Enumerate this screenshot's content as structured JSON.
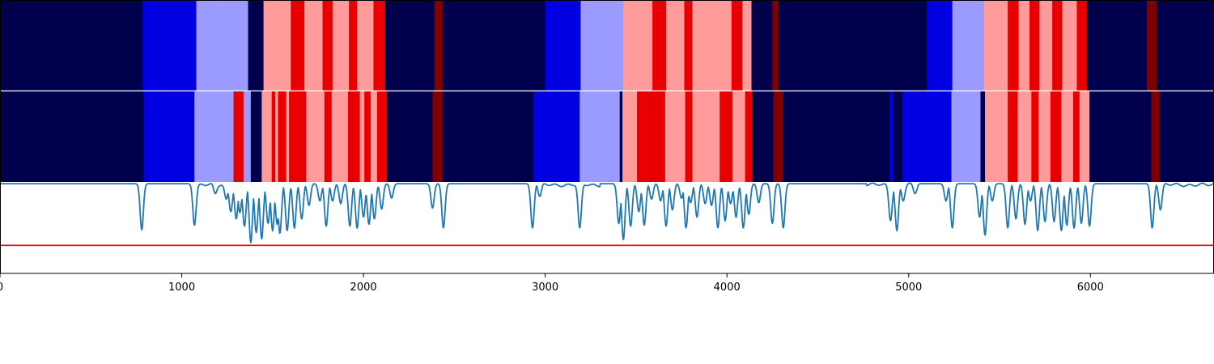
{
  "chart_data": {
    "type": "heatmap",
    "title": "",
    "xlabel": "",
    "ylabel": "",
    "xlim": [
      0,
      6680
    ],
    "xticks": [
      {
        "value": 0,
        "label": "0"
      },
      {
        "value": 1000,
        "label": "1000"
      },
      {
        "value": 2000,
        "label": "2000"
      },
      {
        "value": 3000,
        "label": "3000"
      },
      {
        "value": 4000,
        "label": "4000"
      },
      {
        "value": 5000,
        "label": "5000"
      },
      {
        "value": 6000,
        "label": "6000"
      }
    ],
    "state_colors": {
      "0": "#00004c",
      "1": "#0000e0",
      "2": "#9b9bff",
      "3": "#ff9b9b",
      "4": "#e80000",
      "5": "#7f0000"
    },
    "rows": [
      {
        "segments": [
          [
            0,
            785,
            0
          ],
          [
            785,
            1080,
            1
          ],
          [
            1080,
            1365,
            2
          ],
          [
            1365,
            1450,
            0
          ],
          [
            1450,
            1600,
            3
          ],
          [
            1600,
            1675,
            4
          ],
          [
            1675,
            1775,
            3
          ],
          [
            1775,
            1830,
            4
          ],
          [
            1830,
            1920,
            3
          ],
          [
            1920,
            1965,
            4
          ],
          [
            1965,
            2055,
            3
          ],
          [
            2055,
            2120,
            4
          ],
          [
            2120,
            2390,
            0
          ],
          [
            2390,
            2435,
            5
          ],
          [
            2435,
            3000,
            0
          ],
          [
            3000,
            3195,
            1
          ],
          [
            3195,
            3430,
            2
          ],
          [
            3430,
            3590,
            3
          ],
          [
            3590,
            3665,
            4
          ],
          [
            3665,
            3765,
            3
          ],
          [
            3765,
            3810,
            4
          ],
          [
            3810,
            4025,
            3
          ],
          [
            4025,
            4085,
            4
          ],
          [
            4085,
            4135,
            3
          ],
          [
            4135,
            4250,
            0
          ],
          [
            4250,
            4285,
            5
          ],
          [
            4285,
            5100,
            0
          ],
          [
            5100,
            5240,
            1
          ],
          [
            5240,
            5415,
            2
          ],
          [
            5415,
            5545,
            3
          ],
          [
            5545,
            5605,
            4
          ],
          [
            5605,
            5665,
            3
          ],
          [
            5665,
            5720,
            4
          ],
          [
            5720,
            5790,
            3
          ],
          [
            5790,
            5845,
            4
          ],
          [
            5845,
            5925,
            3
          ],
          [
            5925,
            5980,
            4
          ],
          [
            5980,
            6310,
            0
          ],
          [
            6310,
            6365,
            5
          ],
          [
            6365,
            6680,
            0
          ]
        ]
      },
      {
        "segments": [
          [
            0,
            790,
            0
          ],
          [
            790,
            1070,
            1
          ],
          [
            1070,
            1285,
            2
          ],
          [
            1285,
            1340,
            4
          ],
          [
            1340,
            1380,
            2
          ],
          [
            1380,
            1440,
            0
          ],
          [
            1440,
            1495,
            3
          ],
          [
            1495,
            1515,
            4
          ],
          [
            1515,
            1530,
            3
          ],
          [
            1530,
            1575,
            4
          ],
          [
            1575,
            1590,
            3
          ],
          [
            1590,
            1685,
            4
          ],
          [
            1685,
            1785,
            3
          ],
          [
            1785,
            1825,
            4
          ],
          [
            1825,
            1915,
            3
          ],
          [
            1915,
            1980,
            4
          ],
          [
            1980,
            2005,
            3
          ],
          [
            2005,
            2040,
            4
          ],
          [
            2040,
            2075,
            3
          ],
          [
            2075,
            2130,
            4
          ],
          [
            2130,
            2380,
            0
          ],
          [
            2380,
            2435,
            5
          ],
          [
            2435,
            2935,
            0
          ],
          [
            2935,
            3190,
            1
          ],
          [
            3190,
            3410,
            2
          ],
          [
            3410,
            3425,
            0
          ],
          [
            3425,
            3505,
            3
          ],
          [
            3505,
            3660,
            4
          ],
          [
            3660,
            3770,
            3
          ],
          [
            3770,
            3810,
            4
          ],
          [
            3810,
            3960,
            3
          ],
          [
            3960,
            4030,
            4
          ],
          [
            4030,
            4100,
            3
          ],
          [
            4100,
            4140,
            4
          ],
          [
            4140,
            4255,
            0
          ],
          [
            4255,
            4310,
            5
          ],
          [
            4310,
            4895,
            0
          ],
          [
            4895,
            4915,
            1
          ],
          [
            4915,
            4965,
            0
          ],
          [
            4965,
            5235,
            1
          ],
          [
            5235,
            5395,
            2
          ],
          [
            5395,
            5420,
            0
          ],
          [
            5420,
            5545,
            3
          ],
          [
            5545,
            5600,
            4
          ],
          [
            5600,
            5675,
            3
          ],
          [
            5675,
            5715,
            4
          ],
          [
            5715,
            5780,
            3
          ],
          [
            5780,
            5840,
            4
          ],
          [
            5840,
            5905,
            3
          ],
          [
            5905,
            5940,
            4
          ],
          [
            5940,
            5995,
            3
          ],
          [
            5995,
            6335,
            0
          ],
          [
            6335,
            6380,
            5
          ],
          [
            6380,
            6680,
            0
          ]
        ]
      }
    ],
    "line": {
      "color": "#1f77b4",
      "ylim": [
        0,
        1
      ],
      "baseline": 0.99,
      "wobbly_ranges": [
        [
          1080,
          1470
        ],
        [
          2960,
          3300
        ],
        [
          4770,
          5050
        ],
        [
          6400,
          6680
        ]
      ],
      "dips": [
        [
          780,
          0.48
        ],
        [
          1070,
          0.53
        ],
        [
          1185,
          0.88
        ],
        [
          1245,
          0.82
        ],
        [
          1270,
          0.68
        ],
        [
          1300,
          0.6
        ],
        [
          1320,
          0.67
        ],
        [
          1345,
          0.52
        ],
        [
          1380,
          0.34
        ],
        [
          1410,
          0.45
        ],
        [
          1440,
          0.38
        ],
        [
          1475,
          0.55
        ],
        [
          1500,
          0.47
        ],
        [
          1525,
          0.54
        ],
        [
          1540,
          0.44
        ],
        [
          1580,
          0.47
        ],
        [
          1620,
          0.5
        ],
        [
          1660,
          0.6
        ],
        [
          1700,
          0.75
        ],
        [
          1760,
          0.8
        ],
        [
          1795,
          0.52
        ],
        [
          1830,
          0.8
        ],
        [
          1875,
          0.77
        ],
        [
          1925,
          0.52
        ],
        [
          1965,
          0.5
        ],
        [
          2000,
          0.62
        ],
        [
          2030,
          0.54
        ],
        [
          2060,
          0.6
        ],
        [
          2100,
          0.71
        ],
        [
          2155,
          0.83
        ],
        [
          2380,
          0.72
        ],
        [
          2440,
          0.5
        ],
        [
          2930,
          0.5
        ],
        [
          2970,
          0.85
        ],
        [
          3190,
          0.5
        ],
        [
          3405,
          0.55
        ],
        [
          3430,
          0.37
        ],
        [
          3470,
          0.52
        ],
        [
          3515,
          0.68
        ],
        [
          3545,
          0.53
        ],
        [
          3585,
          0.82
        ],
        [
          3635,
          0.8
        ],
        [
          3665,
          0.52
        ],
        [
          3700,
          0.7
        ],
        [
          3750,
          0.83
        ],
        [
          3775,
          0.5
        ],
        [
          3800,
          0.78
        ],
        [
          3835,
          0.62
        ],
        [
          3880,
          0.77
        ],
        [
          3915,
          0.75
        ],
        [
          3950,
          0.5
        ],
        [
          3990,
          0.58
        ],
        [
          4020,
          0.77
        ],
        [
          4050,
          0.62
        ],
        [
          4090,
          0.5
        ],
        [
          4120,
          0.65
        ],
        [
          4175,
          0.78
        ],
        [
          4250,
          0.55
        ],
        [
          4310,
          0.5
        ],
        [
          4900,
          0.58
        ],
        [
          4935,
          0.47
        ],
        [
          4970,
          0.8
        ],
        [
          5035,
          0.88
        ],
        [
          5205,
          0.8
        ],
        [
          5240,
          0.5
        ],
        [
          5390,
          0.62
        ],
        [
          5420,
          0.42
        ],
        [
          5460,
          0.8
        ],
        [
          5545,
          0.5
        ],
        [
          5590,
          0.6
        ],
        [
          5640,
          0.54
        ],
        [
          5670,
          0.8
        ],
        [
          5710,
          0.47
        ],
        [
          5750,
          0.57
        ],
        [
          5800,
          0.57
        ],
        [
          5840,
          0.47
        ],
        [
          5870,
          0.53
        ],
        [
          5910,
          0.5
        ],
        [
          5950,
          0.55
        ],
        [
          5995,
          0.52
        ],
        [
          6340,
          0.5
        ],
        [
          6385,
          0.7
        ],
        [
          6650,
          0.97
        ]
      ],
      "threshold": {
        "value": 0.31,
        "color": "#ff0000"
      }
    }
  }
}
